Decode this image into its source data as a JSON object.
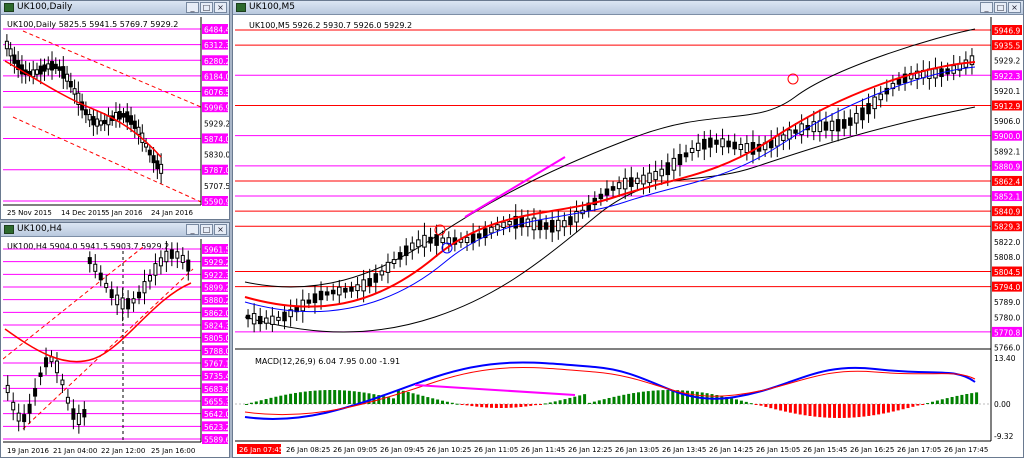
{
  "windows": {
    "daily": {
      "title": "UK100,Daily",
      "info": "UK100,Daily  5825.5 5941.5 5769.7 5929.2",
      "price_labels": [
        "6484.4",
        "6312.3",
        "6280.2",
        "6184.0",
        "6076.5",
        "5996.9",
        "5929.2",
        "5874.0",
        "5830.0",
        "5787.0",
        "5707.5",
        "5590.9"
      ],
      "date_labels": [
        "25 Nov 2015",
        "14 Dec 2015",
        "5 Jan 2016",
        "24 Jan 2016"
      ]
    },
    "h4": {
      "title": "UK100,H4",
      "info": "UK100,H4  5904.0 5941.5 5903.7 5929.2",
      "price_labels": [
        "5961.5",
        "5929.2",
        "5922.3",
        "5899.2",
        "5880.2",
        "5862.0",
        "5824.3",
        "5805.0",
        "5788.0",
        "5767.1",
        "5735.4",
        "5683.6",
        "5655.3",
        "5642.0",
        "5623.2",
        "5589.6"
      ],
      "date_labels": [
        "19 Jan 2016",
        "21 Jan 04:00",
        "22 Jan 12:00",
        "25 Jan 16:00"
      ]
    },
    "m5": {
      "title": "UK100,M5",
      "info": "UK100,M5  5926.2 5930.7 5926.0 5929.2",
      "price_labels": [
        "5946.9",
        "5935.5",
        "5929.2",
        "5922.3",
        "5920.1",
        "5912.9",
        "5906.0",
        "5900.0",
        "5892.1",
        "5880.9",
        "5862.4",
        "5852.1",
        "5840.9",
        "5829.3",
        "5822.0",
        "5808.0",
        "5804.5",
        "5794.0",
        "5789.0",
        "5780.0",
        "5770.8",
        "5766.0"
      ],
      "date_labels": [
        "26 Jan 07:45",
        "26 Jan 08:25",
        "26 Jan 09:05",
        "26 Jan 09:45",
        "26 Jan 10:25",
        "26 Jan 11:05",
        "26 Jan 11:45",
        "26 Jan 12:25",
        "26 Jan 13:05",
        "26 Jan 13:45",
        "26 Jan 14:25",
        "26 Jan 15:05",
        "26 Jan 15:45",
        "26 Jan 16:25",
        "26 Jan 17:05",
        "26 Jan 17:45"
      ],
      "macd_info": "MACD(12,26,9) 6.04 7.95 0.00 -1.91",
      "macd_labels": [
        "13.40",
        "0.00",
        "-9.32"
      ]
    }
  },
  "colors": {
    "candle_up": "#008000",
    "candle_down": "#ff0000",
    "level_line": "#ff00ff",
    "level_red": "#ff0000",
    "ma": "#ff0000",
    "band": "#000000",
    "macd_line": "#0000ff"
  }
}
